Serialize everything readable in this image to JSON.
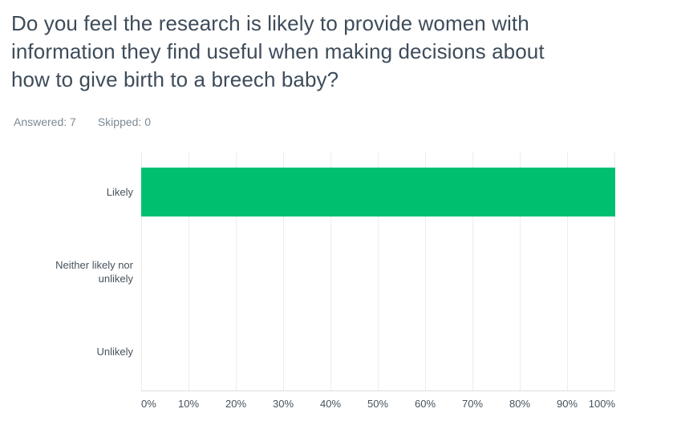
{
  "question": {
    "title": "Do you feel the research is likely to provide women with information they find useful when making decisions about how to give birth to a breech baby?",
    "title_lines": [
      "Do you feel the research is likely to provide women with",
      "information they find useful when making decisions about",
      "how to give birth to a breech baby?"
    ],
    "answered_label": "Answered: 7",
    "skipped_label": "Skipped: 0",
    "answered_count": 7,
    "skipped_count": 0
  },
  "chart_data": {
    "type": "bar",
    "orientation": "horizontal",
    "title": "Do you feel the research is likely to provide women with information they find useful when making decisions about how to give birth to a breech baby?",
    "categories": [
      "Likely",
      "Neither likely nor unlikely",
      "Unlikely"
    ],
    "values": [
      100,
      0,
      0
    ],
    "xlabel": "",
    "ylabel": "",
    "xlim": [
      0,
      100
    ],
    "x_ticks": [
      "0%",
      "10%",
      "20%",
      "30%",
      "40%",
      "50%",
      "60%",
      "70%",
      "80%",
      "90%",
      "100%"
    ],
    "grid": "vertical-only",
    "legend": "none",
    "bar_color": "#00BF6F"
  },
  "colors": {
    "background": "#ffffff",
    "bar_green": "#00BF6F",
    "title_text": "#3E4C5A",
    "stats_text": "#7D8A94",
    "axis_label_text": "#46525D",
    "gridline": "#ECECEC",
    "axis_line": "#DADDDE"
  }
}
